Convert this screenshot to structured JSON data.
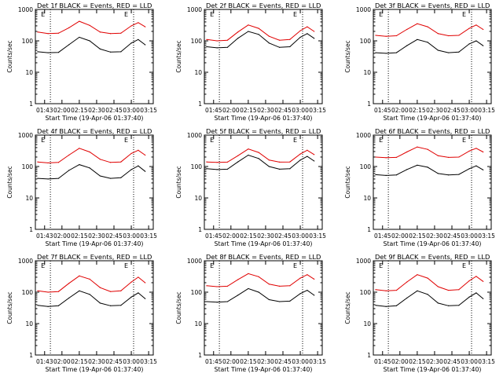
{
  "colors": {
    "events": "#000000",
    "lld": "#e00000",
    "background": "#ffffff"
  },
  "common": {
    "ylabel": "Counts/sec",
    "xlabel": "Start Time (19-Apr-06 01:37:40)",
    "yticks": [
      "1",
      "10",
      "100",
      "1000"
    ],
    "ylim": [
      1,
      1000
    ],
    "scale": "log",
    "dotted_markers": [
      "01:50",
      "03:02"
    ],
    "e_markers": [
      "E",
      "E"
    ]
  },
  "chart_data": [
    {
      "type": "line",
      "title": "Det 1f BLACK = Events, RED = LLD",
      "xticks": [
        "01:43",
        "02:00",
        "02:15",
        "02:30",
        "02:45",
        "03:00",
        "03:15"
      ],
      "x": [
        "01:39",
        "01:48",
        "01:57",
        "02:06",
        "02:15",
        "02:24",
        "02:33",
        "02:42",
        "02:51",
        "03:00",
        "03:06",
        "03:12"
      ],
      "series": [
        {
          "name": "LLD",
          "values": [
            190,
            170,
            175,
            260,
            420,
            310,
            190,
            170,
            175,
            300,
            380,
            280
          ]
        },
        {
          "name": "Events",
          "values": [
            45,
            42,
            43,
            75,
            130,
            100,
            55,
            44,
            45,
            85,
            110,
            75
          ]
        }
      ]
    },
    {
      "type": "line",
      "title": "Det 2f BLACK = Events, RED = LLD",
      "xticks": [
        "01:45",
        "02:00",
        "02:15",
        "02:30",
        "02:45",
        "03:00",
        "03:15"
      ],
      "x": [
        "01:39",
        "01:48",
        "01:57",
        "02:06",
        "02:15",
        "02:24",
        "02:33",
        "02:42",
        "02:51",
        "03:00",
        "03:06",
        "03:12"
      ],
      "series": [
        {
          "name": "LLD",
          "values": [
            110,
            100,
            105,
            190,
            320,
            250,
            140,
            105,
            110,
            210,
            280,
            200
          ]
        },
        {
          "name": "Events",
          "values": [
            65,
            60,
            62,
            120,
            200,
            160,
            85,
            62,
            65,
            130,
            170,
            120
          ]
        }
      ]
    },
    {
      "type": "line",
      "title": "Det 3f BLACK = Events, RED = LLD",
      "xticks": [
        "01:45",
        "02:00",
        "02:15",
        "02:30",
        "02:45",
        "03:00",
        "03:15"
      ],
      "x": [
        "01:39",
        "01:48",
        "01:57",
        "02:06",
        "02:15",
        "02:24",
        "02:33",
        "02:42",
        "02:51",
        "03:00",
        "03:06",
        "03:12"
      ],
      "series": [
        {
          "name": "LLD",
          "values": [
            150,
            140,
            145,
            230,
            350,
            280,
            170,
            145,
            150,
            250,
            320,
            230
          ]
        },
        {
          "name": "Events",
          "values": [
            42,
            40,
            42,
            70,
            110,
            90,
            50,
            42,
            44,
            80,
            100,
            70
          ]
        }
      ]
    },
    {
      "type": "line",
      "title": "Det 4f BLACK = Events, RED = LLD",
      "xticks": [
        "01:43",
        "02:00",
        "02:15",
        "02:30",
        "02:45",
        "03:00",
        "03:15"
      ],
      "x": [
        "01:39",
        "01:48",
        "01:57",
        "02:06",
        "02:15",
        "02:24",
        "02:33",
        "02:42",
        "02:51",
        "03:00",
        "03:06",
        "03:12"
      ],
      "series": [
        {
          "name": "LLD",
          "values": [
            140,
            130,
            135,
            230,
            380,
            290,
            170,
            135,
            140,
            260,
            330,
            230
          ]
        },
        {
          "name": "Events",
          "values": [
            42,
            40,
            42,
            75,
            115,
            90,
            50,
            42,
            44,
            80,
            105,
            70
          ]
        }
      ]
    },
    {
      "type": "line",
      "title": "Det 5f BLACK = Events, RED = LLD",
      "xticks": [
        "01:45",
        "02:00",
        "02:15",
        "02:30",
        "02:45",
        "03:00",
        "03:15"
      ],
      "x": [
        "01:39",
        "01:48",
        "01:57",
        "02:06",
        "02:15",
        "02:24",
        "02:33",
        "02:42",
        "02:51",
        "03:00",
        "03:06",
        "03:12"
      ],
      "series": [
        {
          "name": "LLD",
          "values": [
            140,
            135,
            138,
            220,
            360,
            280,
            160,
            138,
            140,
            250,
            330,
            240
          ]
        },
        {
          "name": "Events",
          "values": [
            85,
            80,
            82,
            140,
            230,
            180,
            100,
            82,
            85,
            160,
            210,
            150
          ]
        }
      ]
    },
    {
      "type": "line",
      "title": "Det 6f BLACK = Events, RED = LLD",
      "xticks": [
        "01:45",
        "02:00",
        "02:15",
        "02:30",
        "02:45",
        "03:00",
        "03:15"
      ],
      "x": [
        "01:39",
        "01:48",
        "01:57",
        "02:06",
        "02:15",
        "02:24",
        "02:33",
        "02:42",
        "02:51",
        "03:00",
        "03:06",
        "03:12"
      ],
      "series": [
        {
          "name": "LLD",
          "values": [
            200,
            190,
            195,
            290,
            420,
            350,
            220,
            195,
            200,
            310,
            380,
            290
          ]
        },
        {
          "name": "Events",
          "values": [
            55,
            52,
            54,
            80,
            110,
            95,
            60,
            54,
            56,
            85,
            105,
            78
          ]
        }
      ]
    },
    {
      "type": "line",
      "title": "Det 7f BLACK = Events, RED = LLD",
      "xticks": [
        "01:43",
        "02:00",
        "02:15",
        "02:30",
        "02:45",
        "03:00",
        "03:15"
      ],
      "x": [
        "01:39",
        "01:48",
        "01:57",
        "02:06",
        "02:15",
        "02:24",
        "02:33",
        "02:42",
        "02:51",
        "03:00",
        "03:06",
        "03:12"
      ],
      "series": [
        {
          "name": "LLD",
          "values": [
            110,
            100,
            105,
            190,
            330,
            260,
            140,
            105,
            110,
            210,
            300,
            200
          ]
        },
        {
          "name": "Events",
          "values": [
            38,
            35,
            37,
            65,
            110,
            85,
            45,
            37,
            38,
            70,
            95,
            62
          ]
        }
      ]
    },
    {
      "type": "line",
      "title": "Det 8f BLACK = Events, RED = LLD",
      "xticks": [
        "01:45",
        "02:00",
        "02:15",
        "02:30",
        "02:45",
        "03:00",
        "03:15"
      ],
      "x": [
        "01:39",
        "01:48",
        "01:57",
        "02:06",
        "02:15",
        "02:24",
        "02:33",
        "02:42",
        "02:51",
        "03:00",
        "03:06",
        "03:12"
      ],
      "series": [
        {
          "name": "LLD",
          "values": [
            160,
            150,
            155,
            250,
            390,
            310,
            180,
            155,
            160,
            280,
            360,
            260
          ]
        },
        {
          "name": "Events",
          "values": [
            50,
            48,
            50,
            80,
            130,
            100,
            58,
            50,
            52,
            90,
            115,
            80
          ]
        }
      ]
    },
    {
      "type": "line",
      "title": "Det 9f BLACK = Events, RED = LLD",
      "xticks": [
        "01:45",
        "02:00",
        "02:15",
        "02:30",
        "02:45",
        "03:00",
        "03:15"
      ],
      "x": [
        "01:39",
        "01:48",
        "01:57",
        "02:06",
        "02:15",
        "02:24",
        "02:33",
        "02:42",
        "02:51",
        "03:00",
        "03:06",
        "03:12"
      ],
      "series": [
        {
          "name": "LLD",
          "values": [
            120,
            110,
            115,
            210,
            360,
            280,
            150,
            115,
            120,
            230,
            320,
            220
          ]
        },
        {
          "name": "Events",
          "values": [
            38,
            35,
            37,
            65,
            110,
            85,
            45,
            37,
            38,
            70,
            95,
            62
          ]
        }
      ]
    }
  ]
}
